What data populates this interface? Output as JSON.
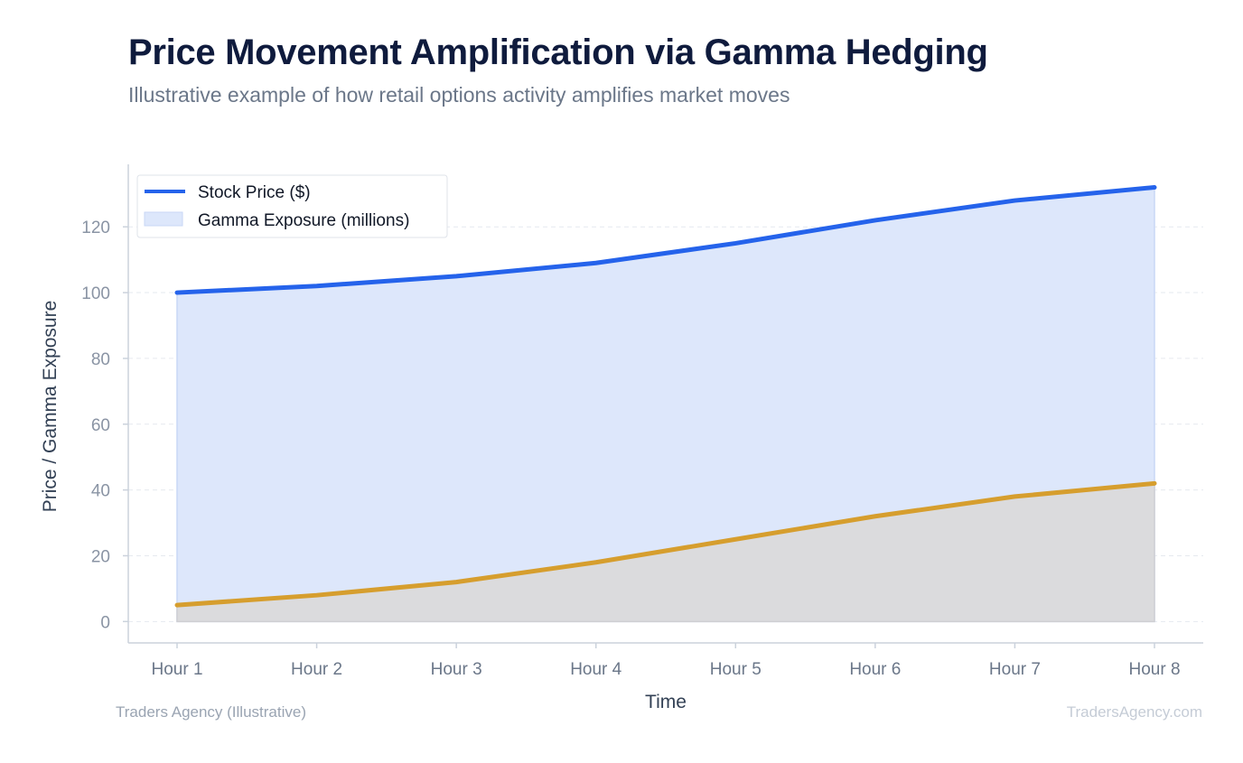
{
  "header": {
    "title": "Price Movement Amplification via Gamma Hedging",
    "subtitle": "Illustrative example of how retail options activity amplifies market moves"
  },
  "footer": {
    "source": "Traders Agency (Illustrative)",
    "watermark": "TradersAgency.com"
  },
  "colors": {
    "price_line": "#2563eb",
    "price_fill": "#dde7fb",
    "gamma_line": "#d69e2e",
    "gamma_fill": "#dbdbdd"
  },
  "chart_data": {
    "type": "area",
    "categories": [
      "Hour 1",
      "Hour 2",
      "Hour 3",
      "Hour 4",
      "Hour 5",
      "Hour 6",
      "Hour 7",
      "Hour 8"
    ],
    "series": [
      {
        "name": "Stock Price ($)",
        "values": [
          100,
          102,
          105,
          109,
          115,
          122,
          128,
          132
        ],
        "style": "line"
      },
      {
        "name": "Gamma Exposure (millions)",
        "values": [
          5,
          8,
          12,
          18,
          25,
          32,
          38,
          42
        ],
        "style": "area"
      }
    ],
    "xlabel": "Time",
    "ylabel": "Price / Gamma Exposure",
    "ylim": [
      -6.5,
      139
    ],
    "yticks": [
      0,
      20,
      40,
      60,
      80,
      100,
      120
    ],
    "grid": true,
    "legend": "top-left"
  }
}
